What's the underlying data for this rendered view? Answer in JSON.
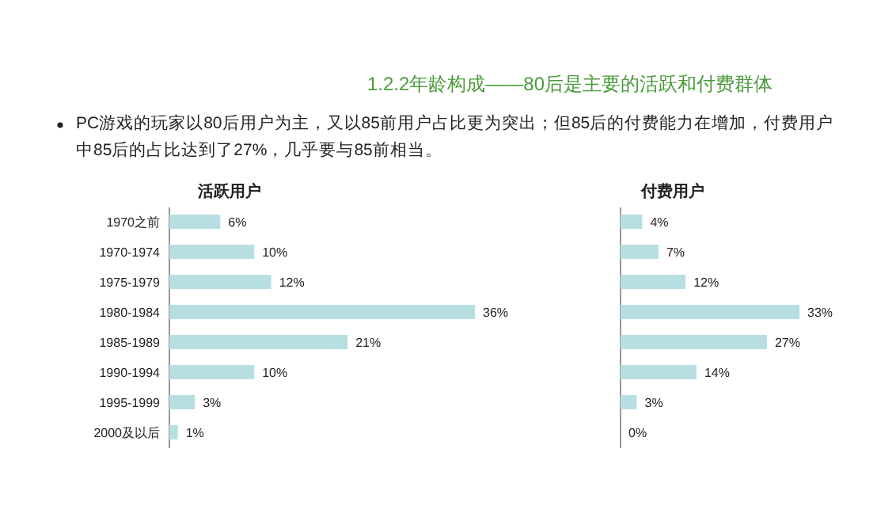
{
  "chart_data": [
    {
      "type": "other",
      "title": "1.2.2年龄构成——80后是主要的活跃和付费群体",
      "annotations": [
        "PC游戏的玩家以80后用户为主，又以85前用户占比更为突出；但85后的付费能力在增加，付费用户中85后的占比达到了27%，几乎要与85前相当。"
      ]
    },
    {
      "type": "bar",
      "orientation": "horizontal",
      "title": "活跃用户",
      "categories": [
        "1970之前",
        "1970-1974",
        "1975-1979",
        "1980-1984",
        "1985-1989",
        "1990-1994",
        "1995-1999",
        "2000及以后"
      ],
      "values": [
        6,
        10,
        12,
        36,
        21,
        10,
        3,
        1
      ],
      "value_labels": [
        "6%",
        "10%",
        "12%",
        "36%",
        "21%",
        "10%",
        "3%",
        "1%"
      ],
      "color": "#b7dfe2",
      "tick_labels": "y"
    },
    {
      "type": "bar",
      "orientation": "horizontal",
      "title": "付费用户",
      "categories": [
        null,
        null,
        null,
        null,
        null,
        null,
        null,
        null
      ],
      "values": [
        4,
        7,
        12,
        33,
        27,
        14,
        3,
        0
      ],
      "value_labels": [
        "4%",
        "7%",
        "12%",
        "33%",
        "27%",
        "14%",
        "3%",
        "0%"
      ],
      "color": "#b7dfe2",
      "tick_labels": false
    }
  ]
}
